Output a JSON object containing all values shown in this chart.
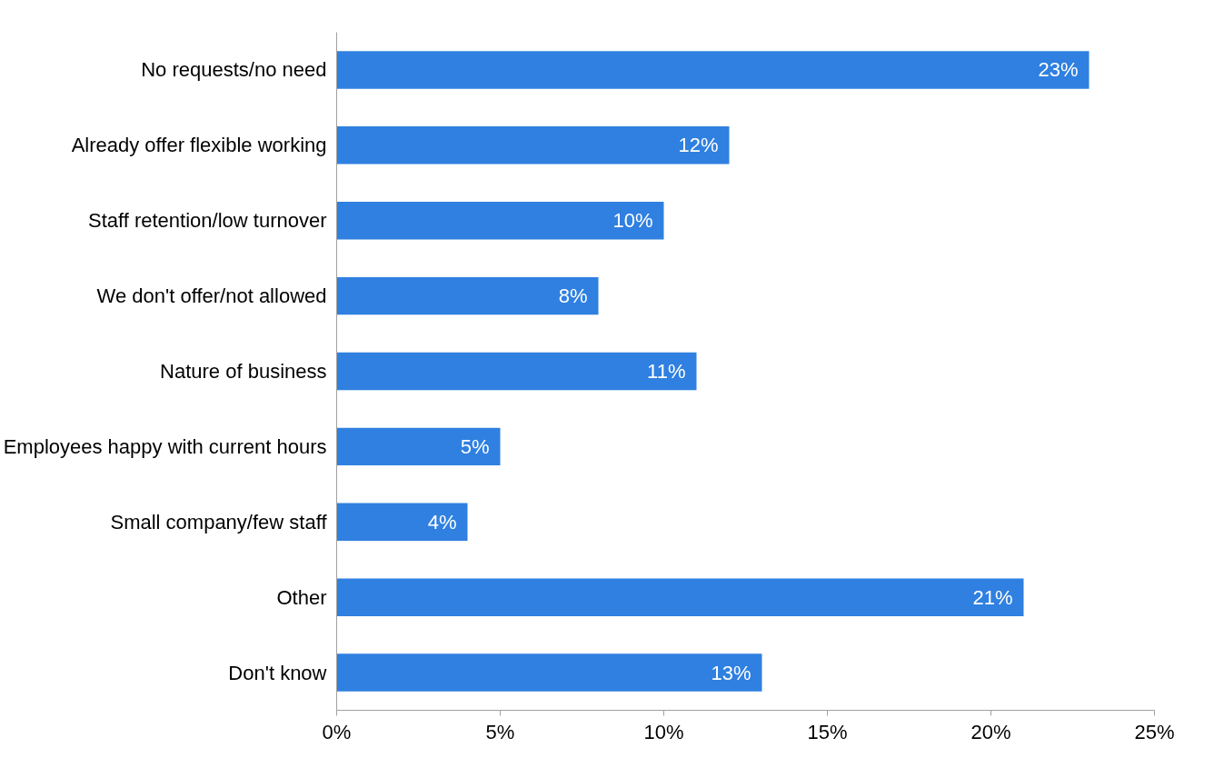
{
  "chart_data": {
    "type": "bar",
    "orientation": "horizontal",
    "categories": [
      "No requests/no need",
      "Already offer flexible working",
      "Staff retention/low turnover",
      "We don't offer/not allowed",
      "Nature of business",
      "Employees happy with current hours",
      "Small company/few staff",
      "Other",
      "Don't know"
    ],
    "values": [
      23,
      12,
      10,
      8,
      11,
      5,
      4,
      21,
      13
    ],
    "value_labels": [
      "23%",
      "12%",
      "10%",
      "8%",
      "11%",
      "5%",
      "4%",
      "21%",
      "13%"
    ],
    "color": "#2f80e0",
    "xlim": [
      0,
      25
    ],
    "xticks": [
      {
        "value": 0,
        "label": "0%"
      },
      {
        "value": 5,
        "label": "5%"
      },
      {
        "value": 10,
        "label": "10%"
      },
      {
        "value": 15,
        "label": "15%"
      },
      {
        "value": 20,
        "label": "20%"
      },
      {
        "value": 25,
        "label": "25%"
      }
    ],
    "grid": false
  }
}
